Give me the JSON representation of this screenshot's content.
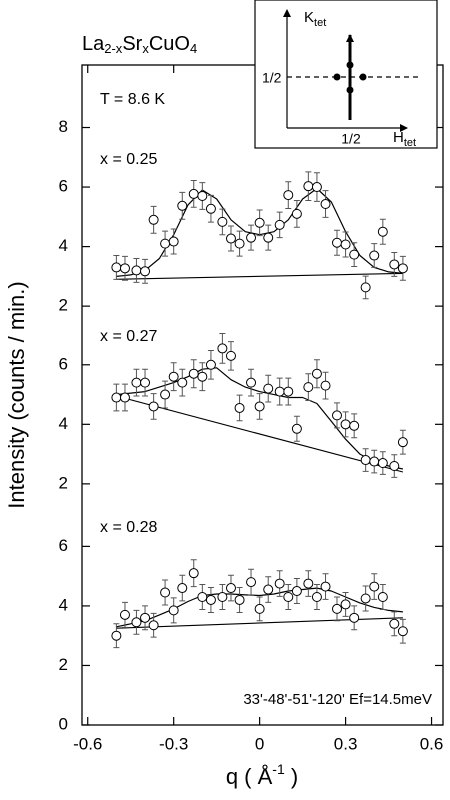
{
  "chart_data": {
    "type": "scatter",
    "title": [
      "La",
      "2-x",
      "Sr",
      "x",
      "CuO",
      "4"
    ],
    "xlabel": [
      "q ( Å",
      "-1",
      " )"
    ],
    "ylabel": "Intensity (counts / min.)",
    "annotations": [
      "T = 8.6 K",
      "33'-48'-51'-120'  Ef=14.5meV"
    ],
    "xlim": [
      -0.62,
      0.64
    ],
    "xticks": [
      -0.6,
      -0.3,
      0,
      0.3,
      0.6
    ],
    "x": [
      -0.5,
      -0.47,
      -0.43,
      -0.4,
      -0.37,
      -0.33,
      -0.3,
      -0.27,
      -0.23,
      -0.2,
      -0.17,
      -0.13,
      -0.1,
      -0.07,
      -0.03,
      0,
      0.03,
      0.07,
      0.1,
      0.13,
      0.17,
      0.2,
      0.23,
      0.27,
      0.3,
      0.33,
      0.37,
      0.4,
      0.43,
      0.47,
      0.5
    ],
    "fit_x": [
      -0.5,
      -0.45,
      -0.4,
      -0.35,
      -0.3,
      -0.25,
      -0.2,
      -0.15,
      -0.1,
      -0.05,
      0,
      0.05,
      0.1,
      0.15,
      0.2,
      0.25,
      0.3,
      0.35,
      0.4,
      0.45,
      0.5
    ],
    "baseline_x": [
      -0.5,
      0.5
    ],
    "color": "#000000",
    "panels": [
      {
        "label": "x = 0.25",
        "ylim": [
          1.33,
          10.1
        ],
        "yticks": [
          2,
          4,
          6,
          8
        ],
        "values": [
          3.3,
          3.27,
          3.2,
          3.17,
          4.9,
          4.1,
          4.17,
          5.37,
          5.77,
          5.7,
          5.27,
          4.83,
          4.27,
          4.1,
          4.3,
          4.8,
          4.3,
          4.73,
          5.73,
          5.1,
          6.03,
          6.0,
          5.43,
          4.13,
          4.07,
          3.73,
          2.63,
          3.7,
          4.5,
          3.4,
          3.27
        ],
        "errors": [
          0.4,
          0.4,
          0.4,
          0.4,
          0.45,
          0.42,
          0.42,
          0.45,
          0.45,
          0.45,
          0.45,
          0.43,
          0.42,
          0.42,
          0.42,
          0.43,
          0.42,
          0.43,
          0.45,
          0.45,
          0.48,
          0.48,
          0.45,
          0.42,
          0.42,
          0.4,
          0.38,
          0.4,
          0.42,
          0.4,
          0.4
        ],
        "fit": [
          3.0,
          3.05,
          3.2,
          3.6,
          4.4,
          5.4,
          5.9,
          5.6,
          4.9,
          4.5,
          4.4,
          4.5,
          4.9,
          5.6,
          5.95,
          5.5,
          4.5,
          3.7,
          3.3,
          3.15,
          3.1
        ],
        "baseline": [
          2.9,
          3.1
        ]
      },
      {
        "label": "x = 0.27",
        "ylim": [
          0.4,
          7.3
        ],
        "yticks": [
          2,
          4,
          6
        ],
        "values": [
          4.9,
          4.9,
          5.4,
          5.4,
          4.6,
          5.0,
          5.6,
          5.4,
          5.7,
          5.6,
          6.0,
          6.55,
          6.3,
          4.55,
          5.4,
          4.6,
          5.2,
          5.1,
          5.1,
          3.85,
          5.25,
          5.7,
          5.3,
          4.3,
          4.0,
          3.95,
          2.8,
          2.75,
          2.7,
          2.6,
          3.4
        ],
        "errors": [
          0.45,
          0.45,
          0.45,
          0.45,
          0.43,
          0.45,
          0.47,
          0.45,
          0.47,
          0.47,
          0.48,
          0.5,
          0.48,
          0.43,
          0.45,
          0.43,
          0.45,
          0.45,
          0.45,
          0.42,
          0.45,
          0.47,
          0.45,
          0.42,
          0.42,
          0.4,
          0.38,
          0.38,
          0.38,
          0.38,
          0.4
        ],
        "fit": [
          5.0,
          5.05,
          5.1,
          5.25,
          5.4,
          5.6,
          5.85,
          5.9,
          5.5,
          5.25,
          5.1,
          5.0,
          4.9,
          4.9,
          4.7,
          4.1,
          3.5,
          3.0,
          2.75,
          2.6,
          2.5
        ],
        "baseline": [
          4.95,
          2.4
        ]
      },
      {
        "label": "x = 0.28",
        "ylim": [
          0,
          6.5
        ],
        "yticks": [
          0,
          2,
          4,
          6
        ],
        "values": [
          3.0,
          3.7,
          3.45,
          3.6,
          3.35,
          4.45,
          3.85,
          4.6,
          5.1,
          4.3,
          4.2,
          4.3,
          4.6,
          4.2,
          4.8,
          3.9,
          4.55,
          4.75,
          4.3,
          4.5,
          4.75,
          4.3,
          4.65,
          3.9,
          4.05,
          3.6,
          4.25,
          4.65,
          4.3,
          3.4,
          3.15
        ],
        "errors": [
          0.4,
          0.42,
          0.4,
          0.4,
          0.4,
          0.42,
          0.42,
          0.43,
          0.45,
          0.42,
          0.42,
          0.42,
          0.43,
          0.42,
          0.43,
          0.4,
          0.43,
          0.43,
          0.42,
          0.42,
          0.43,
          0.42,
          0.43,
          0.4,
          0.4,
          0.4,
          0.42,
          0.43,
          0.42,
          0.4,
          0.4
        ],
        "fit": [
          3.3,
          3.4,
          3.5,
          3.7,
          3.9,
          4.15,
          4.35,
          4.4,
          4.4,
          4.37,
          4.35,
          4.4,
          4.5,
          4.55,
          4.6,
          4.5,
          4.3,
          4.1,
          3.95,
          3.85,
          3.8
        ],
        "baseline": [
          3.25,
          3.6
        ]
      }
    ],
    "inset": {
      "k_label": [
        "K",
        "tet"
      ],
      "h_label": [
        "H",
        "tet"
      ],
      "k_tick": "1/2",
      "h_tick": "1/2"
    }
  }
}
